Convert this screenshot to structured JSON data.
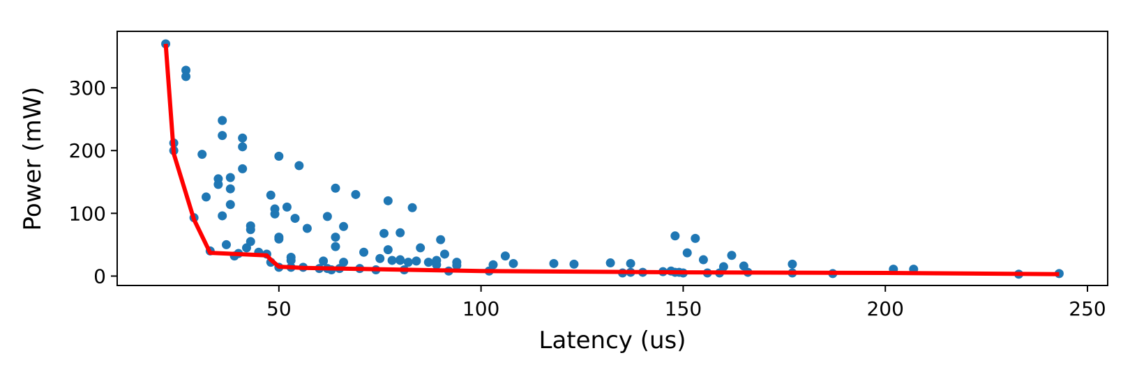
{
  "chart_data": {
    "type": "scatter",
    "xlabel": "Latency (us)",
    "ylabel": "Power (mW)",
    "xlim": [
      10,
      255
    ],
    "ylim": [
      -15,
      390
    ],
    "xticks": [
      50,
      100,
      150,
      200,
      250
    ],
    "yticks": [
      0,
      100,
      200,
      300
    ],
    "grid": false,
    "legend": "none",
    "colors": {
      "points": "#1f77b4",
      "frontier": "#ff0000"
    },
    "series": [
      {
        "type": "scatter",
        "points": [
          [
            22,
            370
          ],
          [
            27,
            328
          ],
          [
            27,
            318
          ],
          [
            24,
            212
          ],
          [
            24,
            200
          ],
          [
            29,
            93
          ],
          [
            31,
            194
          ],
          [
            32,
            126
          ],
          [
            35,
            155
          ],
          [
            35,
            146
          ],
          [
            36,
            248
          ],
          [
            36,
            224
          ],
          [
            36,
            96
          ],
          [
            33,
            40
          ],
          [
            37,
            50
          ],
          [
            38,
            157
          ],
          [
            38,
            139
          ],
          [
            38,
            114
          ],
          [
            39,
            32
          ],
          [
            40,
            36
          ],
          [
            41,
            220
          ],
          [
            41,
            206
          ],
          [
            41,
            171
          ],
          [
            42,
            45
          ],
          [
            43,
            80
          ],
          [
            43,
            74
          ],
          [
            43,
            55
          ],
          [
            45,
            38
          ],
          [
            47,
            35
          ],
          [
            48,
            22
          ],
          [
            48,
            129
          ],
          [
            49,
            107
          ],
          [
            49,
            99
          ],
          [
            50,
            191
          ],
          [
            50,
            62
          ],
          [
            50,
            59
          ],
          [
            50,
            14
          ],
          [
            52,
            110
          ],
          [
            53,
            30
          ],
          [
            53,
            25
          ],
          [
            53,
            14
          ],
          [
            54,
            92
          ],
          [
            55,
            176
          ],
          [
            56,
            14
          ],
          [
            57,
            76
          ],
          [
            60,
            12
          ],
          [
            61,
            24
          ],
          [
            62,
            95
          ],
          [
            62,
            12
          ],
          [
            63,
            10
          ],
          [
            64,
            140
          ],
          [
            64,
            62
          ],
          [
            64,
            47
          ],
          [
            65,
            12
          ],
          [
            66,
            79
          ],
          [
            66,
            22
          ],
          [
            69,
            130
          ],
          [
            70,
            12
          ],
          [
            71,
            38
          ],
          [
            74,
            10
          ],
          [
            75,
            28
          ],
          [
            76,
            68
          ],
          [
            77,
            120
          ],
          [
            77,
            42
          ],
          [
            78,
            25
          ],
          [
            80,
            69
          ],
          [
            80,
            25
          ],
          [
            80,
            26
          ],
          [
            81,
            10
          ],
          [
            82,
            22
          ],
          [
            83,
            109
          ],
          [
            84,
            24
          ],
          [
            85,
            45
          ],
          [
            87,
            22
          ],
          [
            89,
            25
          ],
          [
            89,
            18
          ],
          [
            90,
            58
          ],
          [
            91,
            35
          ],
          [
            92,
            8
          ],
          [
            94,
            22
          ],
          [
            94,
            17
          ],
          [
            102,
            8
          ],
          [
            103,
            18
          ],
          [
            106,
            32
          ],
          [
            108,
            20
          ],
          [
            118,
            20
          ],
          [
            123,
            19
          ],
          [
            132,
            21
          ],
          [
            135,
            5
          ],
          [
            137,
            20
          ],
          [
            137,
            6
          ],
          [
            140,
            6
          ],
          [
            145,
            7
          ],
          [
            147,
            8
          ],
          [
            148,
            64
          ],
          [
            148,
            6
          ],
          [
            149,
            6
          ],
          [
            150,
            5
          ],
          [
            151,
            37
          ],
          [
            153,
            60
          ],
          [
            155,
            26
          ],
          [
            156,
            5
          ],
          [
            159,
            5
          ],
          [
            160,
            15
          ],
          [
            162,
            33
          ],
          [
            165,
            16
          ],
          [
            166,
            6
          ],
          [
            177,
            19
          ],
          [
            177,
            5
          ],
          [
            187,
            4
          ],
          [
            202,
            11
          ],
          [
            207,
            11
          ],
          [
            233,
            3
          ],
          [
            243,
            4
          ]
        ]
      },
      {
        "type": "line",
        "points": [
          [
            22,
            370
          ],
          [
            24,
            195
          ],
          [
            29,
            90
          ],
          [
            33,
            37
          ],
          [
            47,
            33
          ],
          [
            48,
            26
          ],
          [
            50,
            15
          ],
          [
            56,
            13
          ],
          [
            100,
            8
          ],
          [
            150,
            6
          ],
          [
            200,
            5
          ],
          [
            243,
            3
          ]
        ]
      }
    ]
  }
}
